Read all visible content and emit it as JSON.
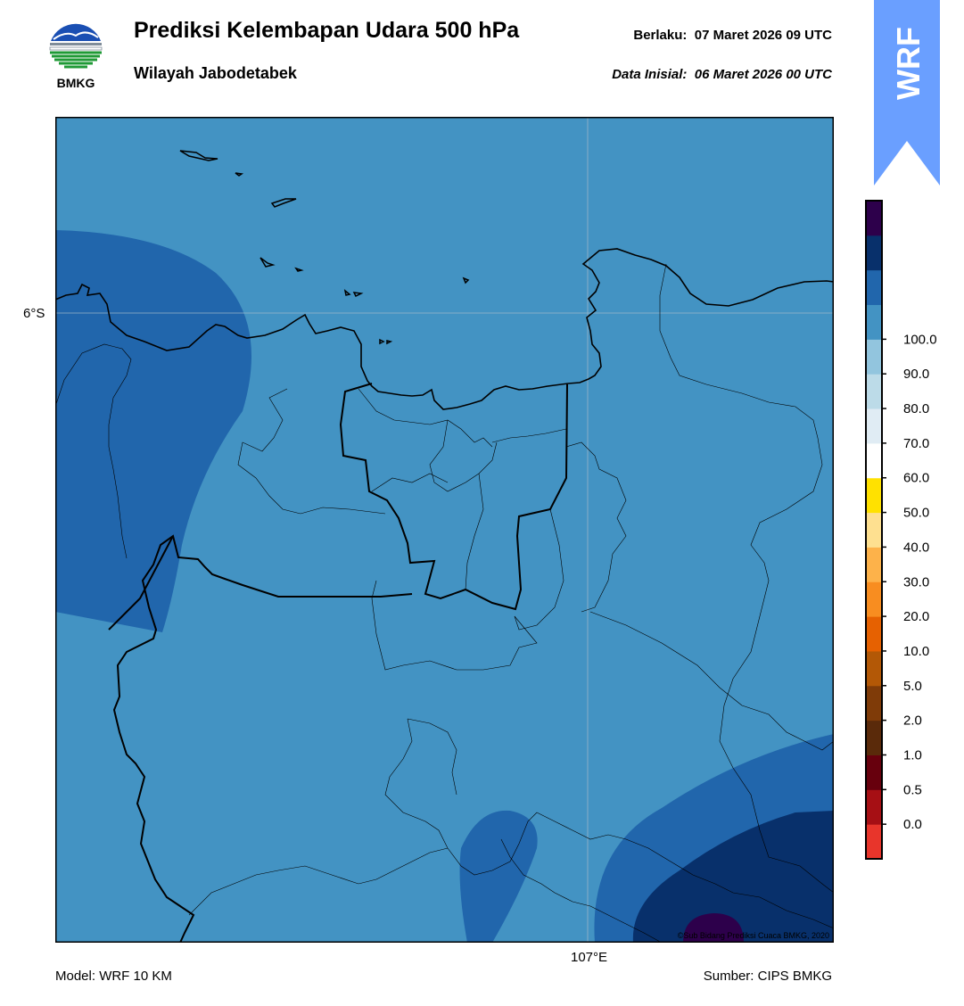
{
  "header": {
    "title": "Prediksi Kelembapan Udara 500 hPa",
    "subtitle": "Wilayah Jabodetabek",
    "valid_label": "Berlaku:",
    "valid_time": "07 Maret 2026 09 UTC",
    "init_label": "Data Inisial:",
    "init_time": "06 Maret 2026 00 UTC"
  },
  "logo": {
    "text": "BMKG"
  },
  "badge": {
    "text": "WRF",
    "color": "#6a9fff"
  },
  "map": {
    "lat_label": "6°S",
    "lon_label": "107°E",
    "credit": "©Sub Bidang Prediksi Cuaca BMKG, 2020",
    "colors": {
      "background": "#4393c3",
      "band_80_90": "#2166ac",
      "band_90_100": "#08306b",
      "band_100": "#2d004b"
    }
  },
  "colorbar": {
    "ticks": [
      "0.0",
      "0.5",
      "1.0",
      "2.0",
      "5.0",
      "10.0",
      "20.0",
      "30.0",
      "40.0",
      "50.0",
      "60.0",
      "70.0",
      "80.0",
      "90.0",
      "100.0"
    ],
    "colors": [
      "#e8352b",
      "#a60f14",
      "#67000d",
      "#5a2a0a",
      "#7f3b08",
      "#b35806",
      "#e66101",
      "#f88d20",
      "#fdb24a",
      "#fee090",
      "#ffe100",
      "#ffffff",
      "#e0ecf4",
      "#bcdbe8",
      "#92c5de",
      "#4393c3",
      "#2166ac",
      "#08306b",
      "#2d004b"
    ]
  },
  "footer": {
    "model": "Model: WRF 10 KM",
    "source": "Sumber: CIPS BMKG"
  }
}
